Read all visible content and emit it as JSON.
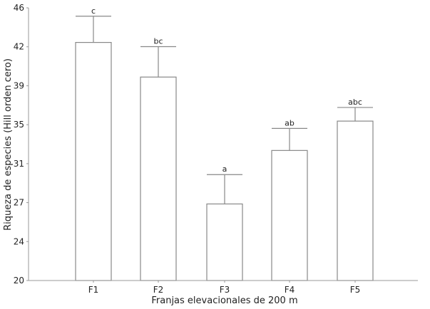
{
  "chart_data": {
    "type": "bar",
    "title": "",
    "xlabel": "Franjas elevacionales de 200 m",
    "ylabel": "Riqueza de especies (Hill orden cero)",
    "categories": [
      "F1",
      "F2",
      "F3",
      "F4",
      "F5"
    ],
    "values": [
      42.7,
      39.4,
      27.3,
      32.4,
      35.2
    ],
    "error_upper": [
      45.2,
      42.3,
      30.1,
      34.5,
      36.5
    ],
    "significance_letters": [
      "c",
      "bc",
      "a",
      "ab",
      "abc"
    ],
    "ylim": [
      20,
      46
    ],
    "yticks": [
      20,
      24,
      27,
      31,
      35,
      39,
      42,
      46
    ],
    "grid": false,
    "legend": null
  },
  "colors": {
    "bar_fill": "#ffffff",
    "bar_stroke": "#888888",
    "axis": "#999999",
    "text": "#222222"
  }
}
